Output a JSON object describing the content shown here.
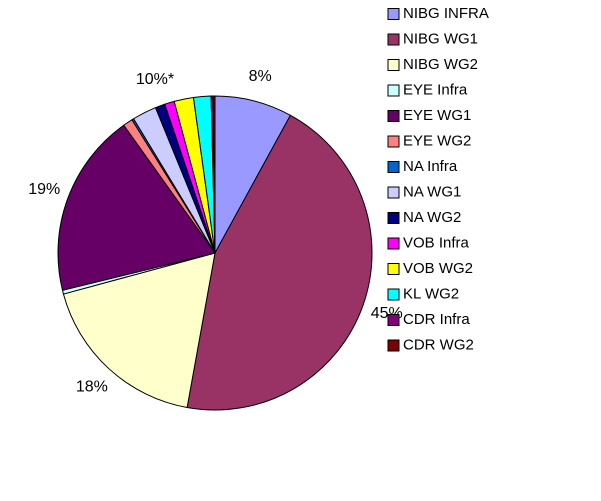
{
  "chart_data": {
    "type": "pie",
    "categories": [
      "NIBG INFRA",
      "NIBG WG1",
      "NIBG WG2",
      "EYE Infra",
      "EYE WG1",
      "EYE WG2",
      "NA Infra",
      "NA WG1",
      "NA WG2",
      "VOB Infra",
      "VOB WG2",
      "KL WG2",
      "CDR Infra",
      "CDR WG2"
    ],
    "values": [
      8,
      45,
      18,
      0.4,
      19,
      1,
      0.2,
      2.5,
      1,
      1,
      2,
      1.8,
      0.2,
      0.2
    ],
    "value_labels": [
      "8%",
      "45%",
      "18%",
      null,
      "19%",
      null,
      null,
      null,
      null,
      null,
      null,
      null,
      null,
      null
    ],
    "colors": [
      "#9999ff",
      "#993366",
      "#ffffcc",
      "#ccffff",
      "#660066",
      "#ff8080",
      "#0066cc",
      "#ccccff",
      "#000080",
      "#ff00ff",
      "#ffff00",
      "#00ffff",
      "#800080",
      "#800000"
    ],
    "annotation": "10%*",
    "legend": "right"
  }
}
